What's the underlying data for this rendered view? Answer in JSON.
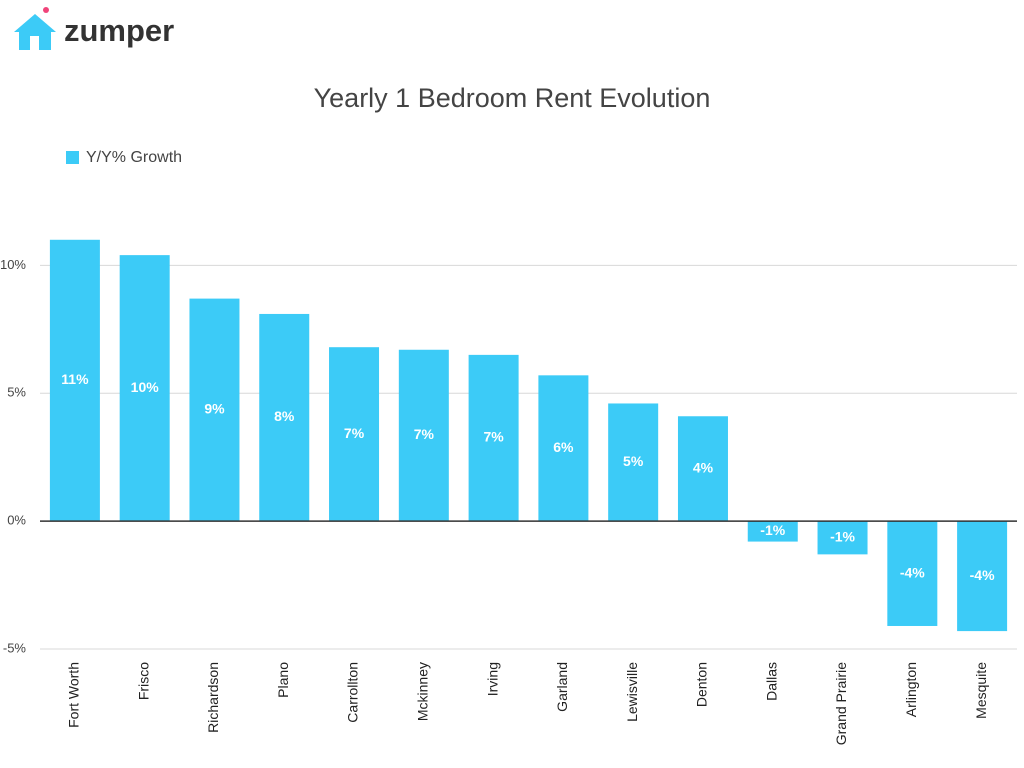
{
  "logo": "zumper",
  "chart_data": {
    "type": "bar",
    "title": "Yearly 1 Bedroom Rent Evolution",
    "series": [
      {
        "name": "Y/Y% Growth",
        "color": "#3ccbf7",
        "values": [
          11,
          10.4,
          8.7,
          8.1,
          6.8,
          6.7,
          6.5,
          5.7,
          4.6,
          4.1,
          -0.8,
          -1.3,
          -4.1,
          -4.3
        ],
        "value_labels": [
          "11%",
          "10%",
          "9%",
          "8%",
          "7%",
          "7%",
          "7%",
          "6%",
          "5%",
          "4%",
          "-1%",
          "-1%",
          "-4%",
          "-4%"
        ]
      }
    ],
    "categories": [
      "Fort Worth",
      "Frisco",
      "Richardson",
      "Plano",
      "Carrollton",
      "Mckinney",
      "Irving",
      "Garland",
      "Lewisville",
      "Denton",
      "Dallas",
      "Grand Prairie",
      "Arlington",
      "Mesquite"
    ],
    "ylim": [
      -5,
      12
    ],
    "yticks": [
      {
        "value": -5,
        "label": "-5%"
      },
      {
        "value": 0,
        "label": "0%"
      },
      {
        "value": 5,
        "label": "5%"
      },
      {
        "value": 10,
        "label": "10%"
      }
    ],
    "grid": true,
    "legend": "top-left"
  }
}
